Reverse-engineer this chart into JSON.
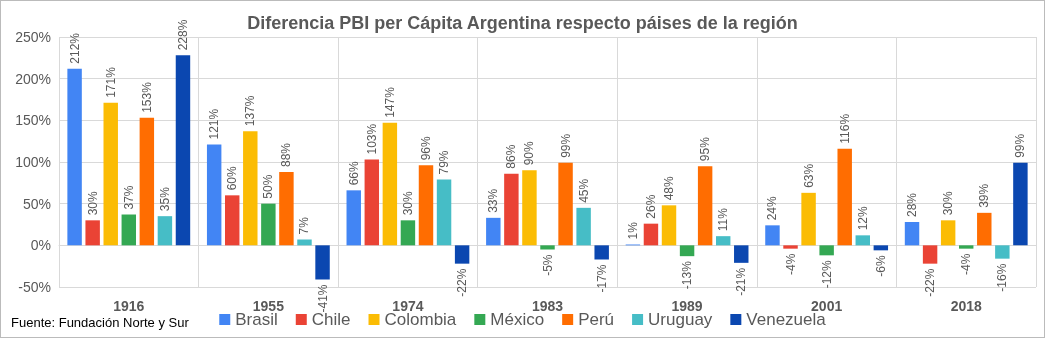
{
  "chart_data": {
    "type": "bar",
    "title": "Diferencia PBI per Cápita Argentina respecto páises de la región",
    "categories": [
      "1916",
      "1955",
      "1974",
      "1983",
      "1989",
      "2001",
      "2018"
    ],
    "series": [
      {
        "name": "Brasil",
        "color": "#4285f4",
        "values": [
          212,
          121,
          66,
          33,
          1,
          24,
          28
        ],
        "value_labels": [
          "212%",
          "121%",
          "66%",
          "33%",
          "1%",
          "24%",
          "28%"
        ]
      },
      {
        "name": "Chile",
        "color": "#ea4335",
        "values": [
          30,
          60,
          103,
          86,
          26,
          -4,
          -22
        ],
        "value_labels": [
          "30%",
          "60%",
          "103%",
          "86%",
          "26%",
          "-4%",
          "-22%"
        ]
      },
      {
        "name": "Colombia",
        "color": "#fbbc04",
        "values": [
          171,
          137,
          147,
          90,
          48,
          63,
          30
        ],
        "value_labels": [
          "171%",
          "137%",
          "147%",
          "90%",
          "48%",
          "63%",
          "30%"
        ]
      },
      {
        "name": "México",
        "color": "#34a853",
        "values": [
          37,
          50,
          30,
          -5,
          -13,
          -12,
          -4
        ],
        "value_labels": [
          "37%",
          "50%",
          "30%",
          "-5%",
          "-13%",
          "-12%",
          "-4%"
        ]
      },
      {
        "name": "Perú",
        "color": "#ff6d01",
        "values": [
          153,
          88,
          96,
          99,
          95,
          116,
          39
        ],
        "value_labels": [
          "153%",
          "88%",
          "96%",
          "99%",
          "95%",
          "116%",
          "39%"
        ]
      },
      {
        "name": "Uruguay",
        "color": "#46bdc6",
        "values": [
          35,
          7,
          79,
          45,
          11,
          12,
          -16
        ],
        "value_labels": [
          "35%",
          "7%",
          "79%",
          "45%",
          "11%",
          "12%",
          "-16%"
        ]
      },
      {
        "name": "Venezuela",
        "color": "#0b47b0",
        "values": [
          228,
          -41,
          -22,
          -17,
          -21,
          -6,
          99
        ],
        "value_labels": [
          "228%",
          "-41%",
          "-22%",
          "-17%",
          "-21%",
          "-6%",
          "99%"
        ]
      }
    ],
    "ylim": [
      -50,
      250
    ],
    "yticks": [
      {
        "value": -50,
        "label": "-50%"
      },
      {
        "value": 0,
        "label": "0%"
      },
      {
        "value": 50,
        "label": "50%"
      },
      {
        "value": 100,
        "label": "100%"
      },
      {
        "value": 150,
        "label": "150%"
      },
      {
        "value": 200,
        "label": "200%"
      },
      {
        "value": 250,
        "label": "250%"
      }
    ],
    "grid": true,
    "legend": "bottom",
    "annotations": [
      "Fuente: Fundación Norte y Sur"
    ]
  }
}
